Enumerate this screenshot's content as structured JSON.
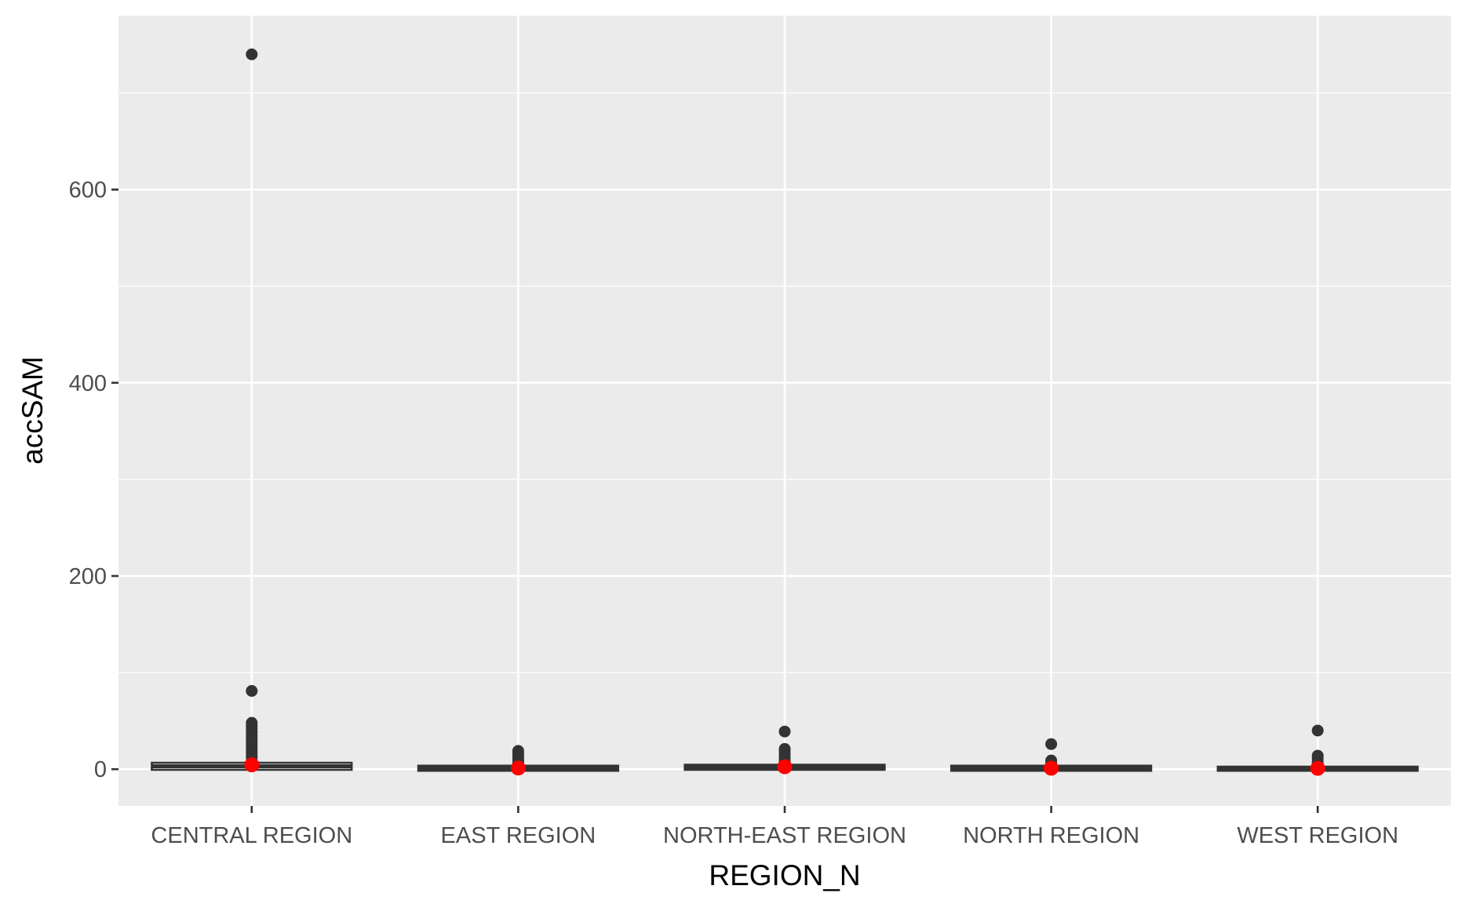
{
  "chart_data": {
    "type": "boxplot",
    "title": "",
    "xlabel": "REGION_N",
    "ylabel": "accSAM",
    "categories": [
      "CENTRAL REGION",
      "EAST REGION",
      "NORTH-EAST REGION",
      "NORTH REGION",
      "WEST REGION"
    ],
    "ylim": [
      -38,
      780
    ],
    "y_ticks": [
      0,
      200,
      400,
      600
    ],
    "grid": true,
    "legend": "none",
    "colors": {
      "panel_background": "#ebebeb",
      "grid_line": "#ffffff",
      "box": "#333333",
      "outlier": "#333333",
      "mean_point": "#ff0000",
      "tick_label": "#4d4d4d",
      "axis_title": "#000000"
    },
    "boxes": [
      {
        "category": "CENTRAL REGION",
        "median": 3,
        "q1": 1,
        "q3": 5,
        "whisker_low": 0,
        "whisker_high": 10,
        "mean": 4.5,
        "outliers": [
          740,
          81,
          48,
          45,
          42,
          38,
          35,
          32,
          29,
          26,
          23,
          20,
          17,
          14,
          12
        ]
      },
      {
        "category": "EAST REGION",
        "median": 1,
        "q1": 0,
        "q3": 2,
        "whisker_low": 0,
        "whisker_high": 4,
        "mean": 1.2,
        "outliers": [
          19,
          16,
          13,
          10,
          8,
          6
        ]
      },
      {
        "category": "NORTH-EAST REGION",
        "median": 2,
        "q1": 1,
        "q3": 3,
        "whisker_low": 0,
        "whisker_high": 5,
        "mean": 2.5,
        "outliers": [
          39,
          21,
          18,
          15,
          12,
          9,
          7
        ]
      },
      {
        "category": "NORTH REGION",
        "median": 1,
        "q1": 0,
        "q3": 2,
        "whisker_low": 0,
        "whisker_high": 3,
        "mean": 1,
        "outliers": [
          26,
          9,
          7,
          5
        ]
      },
      {
        "category": "WEST REGION",
        "median": 0,
        "q1": 0,
        "q3": 1,
        "whisker_low": 0,
        "whisker_high": 3,
        "mean": 0.9,
        "outliers": [
          40,
          14,
          11,
          8,
          6
        ]
      }
    ]
  }
}
